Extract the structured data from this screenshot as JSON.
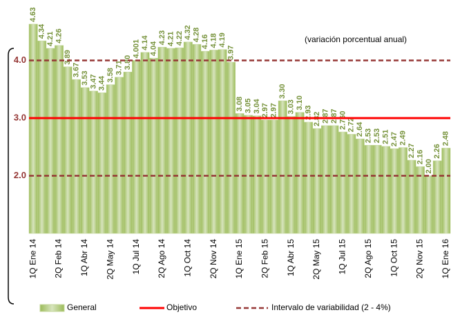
{
  "chart_data": {
    "type": "bar",
    "annotation": "(variación porcentual anual)",
    "categories": [
      "1Q Ene 14",
      null,
      null,
      "2Q Feb 14",
      null,
      null,
      "1Q Abr 14",
      null,
      null,
      "2Q May 14",
      null,
      null,
      "1Q Jul 14",
      null,
      null,
      "2Q Ago 14",
      null,
      null,
      "1Q Oct 14",
      null,
      null,
      "2Q Nov 14",
      null,
      null,
      "1Q Ene 15",
      null,
      null,
      "2Q Feb 15",
      null,
      null,
      "1Q Abr 15",
      null,
      null,
      "2Q May 15",
      null,
      null,
      "1Q Jul 15",
      null,
      null,
      "2Q Ago 15",
      null,
      null,
      "1Q Oct 15",
      null,
      null,
      "2Q Nov 15",
      null,
      null,
      "1Q Ene 16"
    ],
    "series": [
      {
        "name": "General",
        "color": "#c4d79b",
        "values": [
          4.63,
          4.34,
          4.21,
          4.26,
          3.89,
          3.67,
          3.53,
          3.47,
          3.44,
          3.58,
          3.71,
          3.8,
          4.001,
          4.14,
          4.04,
          4.23,
          4.21,
          4.22,
          4.32,
          4.28,
          4.16,
          4.18,
          4.19,
          3.97,
          3.08,
          3.05,
          3.04,
          2.97,
          2.97,
          3.3,
          3.03,
          3.1,
          2.93,
          2.82,
          2.87,
          2.87,
          2.76,
          2.72,
          2.64,
          2.53,
          2.53,
          2.51,
          2.47,
          2.49,
          2.27,
          2.16,
          2.0,
          2.26,
          2.48
        ],
        "value_labels": [
          "4.63",
          "4.34",
          "4.21",
          "4.26",
          "3.89",
          "3.67",
          "3.53",
          "3.47",
          "3.44",
          "3.58",
          "3.71",
          "3.80",
          "4.001",
          "4.14",
          "4.04",
          "4.23",
          "4.21",
          "4.22",
          "4.32",
          "4.28",
          "4.16",
          "4.18",
          "4.19",
          "3.97",
          "3.08",
          "3.05",
          "3.04",
          "2.97",
          "2.97",
          "3.30",
          "3.03",
          "3.10",
          "2.93",
          "2.82",
          "2.87",
          "2.87",
          "2.760",
          "2.72",
          "2.64",
          "2.53",
          "2.53",
          "2.51",
          "2.47",
          "2.49",
          "2.27",
          "2.16",
          "2.00",
          "2.26",
          "2.48"
        ]
      }
    ],
    "target": {
      "name": "Objetivo",
      "value": 3,
      "color": "#ff0000"
    },
    "band": {
      "name": "Intervalo de variabilidad (2 - 4%)",
      "values": [
        2,
        4
      ],
      "color": "#953735"
    },
    "ylim": [
      1,
      5
    ],
    "yticks": [
      {
        "value": 2,
        "label": "2.0"
      },
      {
        "value": 3,
        "label": "3.0"
      },
      {
        "value": 4,
        "label": "4.0"
      }
    ]
  }
}
